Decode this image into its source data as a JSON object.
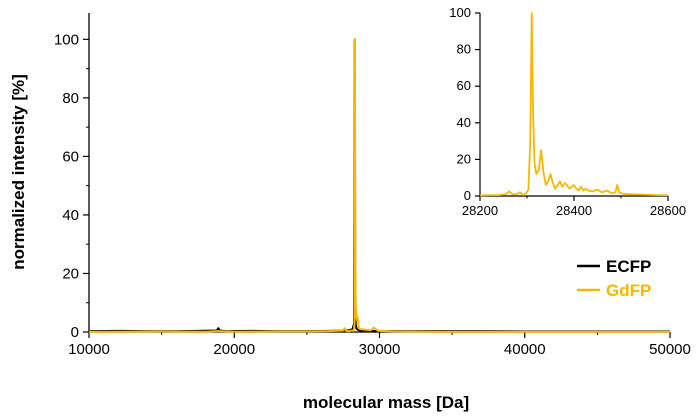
{
  "chart_data": [
    {
      "type": "line",
      "xlabel": "molecular mass [Da]",
      "ylabel": "normalized intensity [%]",
      "xlim": [
        10000,
        50000
      ],
      "ylim": [
        0,
        109
      ],
      "xticks": [
        10000,
        20000,
        30000,
        40000,
        50000
      ],
      "xtick_labels": [
        "10000",
        "20000",
        "30000",
        "40000",
        "50000"
      ],
      "yticks": [
        0,
        20,
        40,
        60,
        80,
        100
      ],
      "ytick_labels": [
        "0",
        "20",
        "40",
        "60",
        "80",
        "100"
      ],
      "grid": false,
      "legend_position": "right",
      "series": [
        {
          "name": "ECFP",
          "color": "#000000",
          "x": [
            10000,
            12000,
            14000,
            16000,
            17500,
            18800,
            18900,
            19000,
            19500,
            21000,
            23000,
            25000,
            26500,
            27500,
            27900,
            28150,
            28250,
            28280,
            28300,
            28315,
            28330,
            28360,
            28420,
            28500,
            28700,
            29000,
            29500,
            31000,
            34000,
            37000,
            40000,
            43000,
            46000,
            50000
          ],
          "y": [
            0.3,
            0.4,
            0.3,
            0.3,
            0.4,
            0.5,
            1.3,
            0.5,
            0.3,
            0.4,
            0.3,
            0.3,
            0.4,
            0.5,
            0.6,
            1.0,
            3.0,
            40,
            100,
            70,
            8,
            2.5,
            1.2,
            0.8,
            0.5,
            0.6,
            0.4,
            0.3,
            0.3,
            0.3,
            0.2,
            0.2,
            0.2,
            0.2
          ]
        },
        {
          "name": "GdFP",
          "color": "#f5b800",
          "x": [
            10000,
            12000,
            15000,
            18000,
            18900,
            20000,
            23000,
            25000,
            26500,
            27500,
            27600,
            27700,
            27900,
            28100,
            28200,
            28250,
            28280,
            28300,
            28310,
            28320,
            28340,
            28360,
            28400,
            28450,
            28500,
            28550,
            28650,
            29000,
            29400,
            29600,
            29900,
            31000,
            34000,
            37000,
            40000,
            43000,
            46000,
            50000
          ],
          "y": [
            0.1,
            0.1,
            0.2,
            0.1,
            0.3,
            0.1,
            0.2,
            0.2,
            0.3,
            0.5,
            1.3,
            0.4,
            0.3,
            0.5,
            0.4,
            1.0,
            3.0,
            30,
            100,
            50,
            25,
            10,
            6,
            4,
            5,
            2,
            1,
            0.8,
            0.6,
            1.5,
            0.4,
            0.2,
            0.1,
            0.1,
            0.1,
            0.1,
            0.1,
            0.1
          ]
        }
      ]
    },
    {
      "type": "line",
      "xlim": [
        28200,
        28600
      ],
      "ylim": [
        0,
        100
      ],
      "xticks": [
        28200,
        28400,
        28600
      ],
      "xtick_labels": [
        "28200",
        "28400",
        "28600"
      ],
      "yticks": [
        0,
        20,
        40,
        60,
        80,
        100
      ],
      "ytick_labels": [
        "0",
        "20",
        "40",
        "60",
        "80",
        "100"
      ],
      "grid": false,
      "series": [
        {
          "color": "#f5b800",
          "x": [
            28200,
            28220,
            28240,
            28255,
            28262,
            28270,
            28278,
            28285,
            28292,
            28298,
            28303,
            28307,
            28310,
            28313,
            28316,
            28320,
            28325,
            28330,
            28335,
            28340,
            28345,
            28350,
            28355,
            28360,
            28365,
            28370,
            28375,
            28380,
            28385,
            28390,
            28395,
            28400,
            28405,
            28410,
            28415,
            28420,
            28425,
            28430,
            28440,
            28450,
            28460,
            28470,
            28480,
            28488,
            28492,
            28496,
            28500,
            28505,
            28520,
            28540,
            28560,
            28580,
            28600
          ],
          "y": [
            0.3,
            0.5,
            0.5,
            1.0,
            2.5,
            0.8,
            1.0,
            2.0,
            0.5,
            1.5,
            3.5,
            30,
            100,
            45,
            18,
            12,
            14,
            25,
            13,
            6,
            8,
            12,
            7,
            4,
            6,
            8,
            5,
            7,
            6,
            4,
            5,
            6,
            4,
            3,
            5,
            3,
            4,
            3,
            2.5,
            3.5,
            2,
            3,
            1.5,
            2,
            6,
            2,
            1.5,
            1.2,
            1.0,
            0.8,
            0.6,
            0.5,
            0.4
          ]
        }
      ]
    }
  ]
}
